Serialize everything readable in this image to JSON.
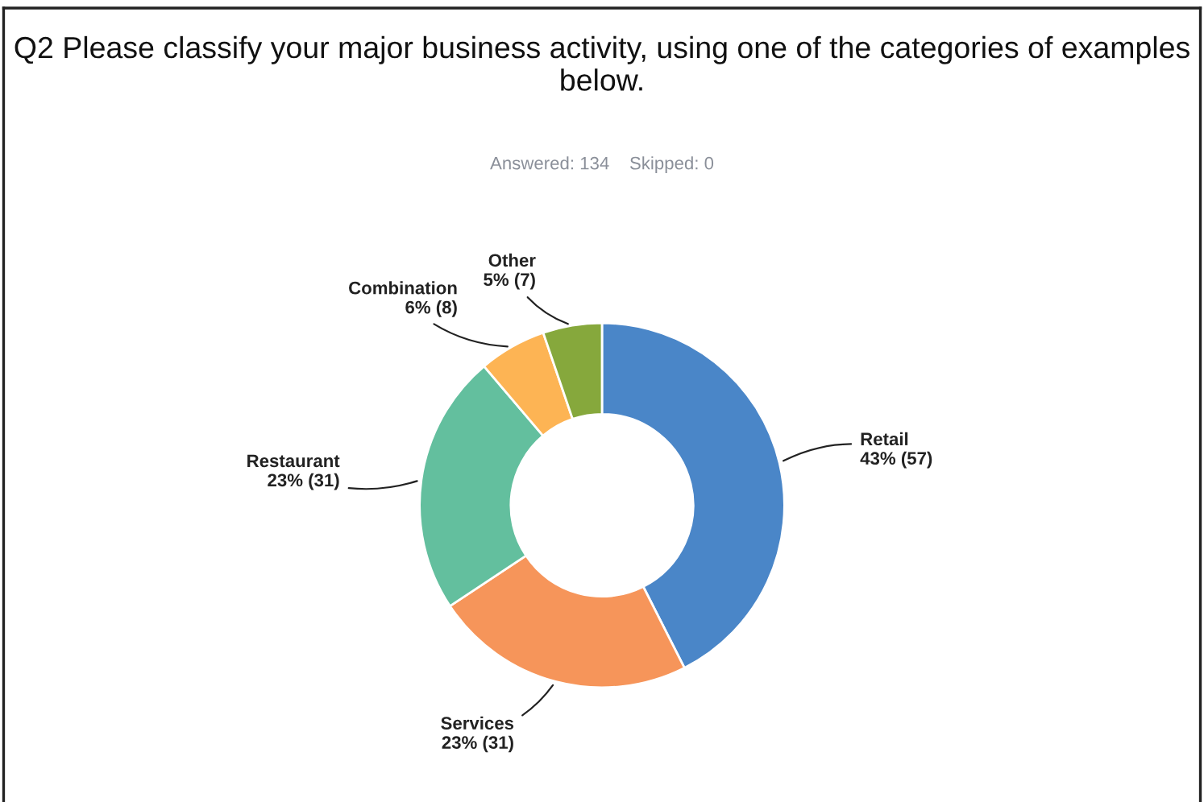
{
  "chart_data": {
    "type": "donut",
    "title": "Q2 Please classify your major business activity, using one of the categories of examples below.",
    "subtitle": "Answered: 134    Skipped: 0",
    "categories": [
      "Retail",
      "Services",
      "Restaurant",
      "Combination",
      "Other"
    ],
    "values": [
      57,
      31,
      31,
      8,
      7
    ],
    "colors": [
      "#4a86c8",
      "#f6955a",
      "#63bf9e",
      "#fdb454",
      "#86a83c"
    ],
    "value_labels": [
      "43% (57)",
      "23% (31)",
      "23% (31)",
      "6% (8)",
      "5% (7)"
    ],
    "legend": false
  }
}
